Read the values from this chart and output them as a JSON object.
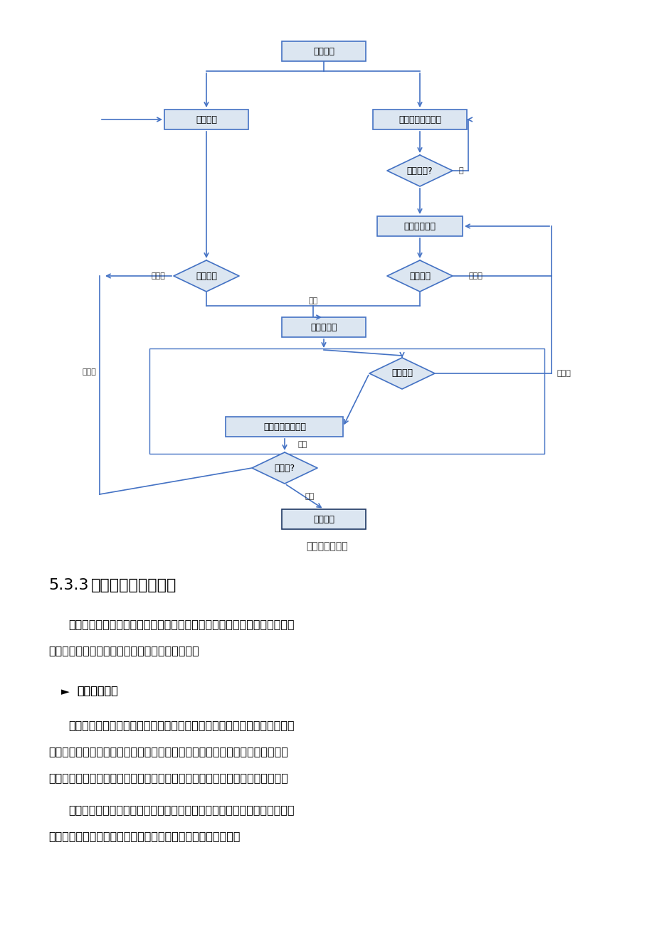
{
  "page_bg": "#ffffff",
  "box_fill": "#dce6f1",
  "box_border": "#4472c4",
  "diamond_fill": "#dce6f1",
  "diamond_border": "#4472c4",
  "arrow_color": "#4472c4",
  "highlight_fill": "#dce6f1",
  "highlight_border": "#1f3864",
  "n_gongxu": "工序完成",
  "n_zijian": "工程自检",
  "n_ziliao_collect": "竝工资料收集编制",
  "n_shiquan": "是否齐全?",
  "n_ziliao_edit": "竝工资料编制",
  "n_fuche": "竝工复测",
  "n_zhiliang": "质量合格",
  "n_yushou": "工程预验收",
  "n_ziliao_zb": "资料准备",
  "n_tijiao": "提交建设单位验收",
  "n_hegefou": "合格否?",
  "n_wangong": "工程完工",
  "caption": "质量管理流程图",
  "heading_num": "5.3.3",
  "heading_text": "质量管理及保障措施",
  "p1": "施工质量控制应贯彻全面、全员、全过程质量管理的思想，运用动态控制原",
  "p1b": "理，进行质量的事前控制、事中控制和事后控制。",
  "sub1": "事前质量控制",
  "p2": "即在正式施工前进行的事前主动质量控制，通过编制施工质量计划，明确质",
  "p2b": "量目标，制定施工方案，设置质量管理点，落实质量责任，分析可能导致质量目",
  "p2c": "标偏离的各种影响因素，针对这些影响因素制定有效的预防措施，防患于未然。",
  "p3": "事前质量预控必须充分发挥组织的技术和管理方面的整体优势，把长期形成",
  "p3b": "的先进技术、管理方法和经验智慧，创造性地应用于工程项目。",
  "lbl_fou": "否",
  "lbl_hege": "合格",
  "lbl_buhege": "不合格"
}
